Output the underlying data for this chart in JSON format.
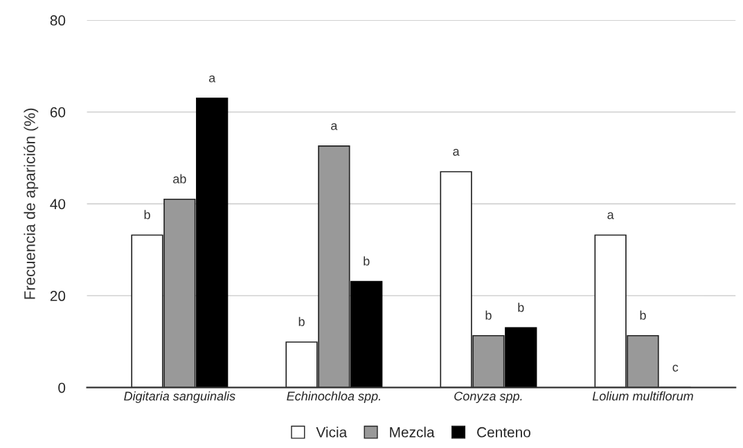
{
  "chart_data": {
    "type": "bar",
    "ylabel": "Frecuencia de aparición (%)",
    "categories": [
      "Digitaria sanguinalis",
      "Echinochloa spp.",
      "Conyza spp.",
      "Lolium multiflorum"
    ],
    "series": [
      {
        "name": "Vicia",
        "color": "#ffffff",
        "values": [
          33.2,
          9.9,
          47,
          33.2
        ],
        "value_labels": [
          "b",
          "b",
          "a",
          "a"
        ]
      },
      {
        "name": "Mezcla",
        "color": "#999999",
        "values": [
          41,
          52.6,
          11.3,
          11.3
        ],
        "value_labels": [
          "ab",
          "a",
          "b",
          "b"
        ]
      },
      {
        "name": "Centeno",
        "color": "#000000",
        "values": [
          63,
          23.1,
          13,
          0
        ],
        "value_labels": [
          "a",
          "b",
          "b",
          "c"
        ]
      }
    ],
    "ylim": [
      0,
      80
    ],
    "yticks": [
      0,
      20,
      40,
      60,
      80
    ],
    "grid": "y",
    "legend": "bottom"
  }
}
